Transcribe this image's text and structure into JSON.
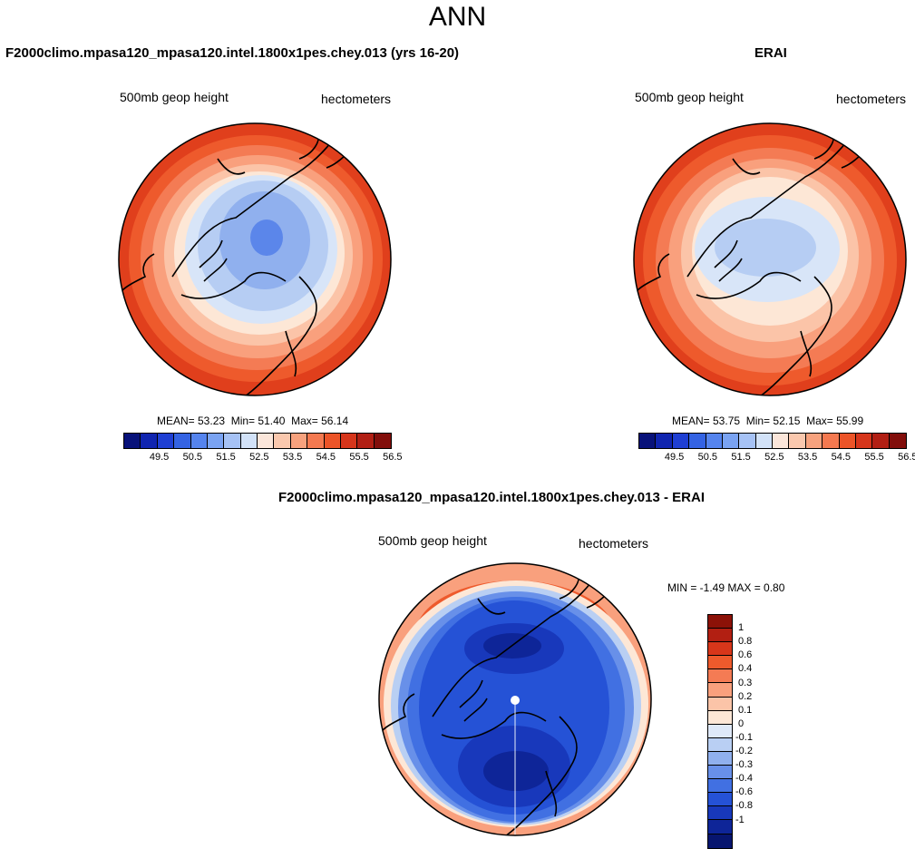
{
  "title": "ANN",
  "panels": {
    "left": {
      "title": "F2000climo.mpasa120_mpasa120.intel.1800x1pes.chey.013 (yrs 16-20)",
      "variable": "500mb geop height",
      "units": "hectometers",
      "mean": "MEAN=  53.23",
      "min": "Min=  51.40",
      "max": "Max=  56.14"
    },
    "right": {
      "title": "ERAI",
      "variable": "500mb geop height",
      "units": "hectometers",
      "mean": "MEAN=  53.75",
      "min": "Min=  52.15",
      "max": "Max=  55.99"
    },
    "diff": {
      "title": "F2000climo.mpasa120_mpasa120.intel.1800x1pes.chey.013 - ERAI",
      "variable": "500mb geop height",
      "units": "hectometers",
      "minmax": "MIN =  -1.49 MAX =   0.80"
    }
  },
  "colorbar_main": {
    "colors": [
      "#08127a",
      "#1025b0",
      "#1f3fd3",
      "#3463e3",
      "#5584ee",
      "#7aa3f2",
      "#a6c2f5",
      "#d2e2f8",
      "#fbe6da",
      "#fac8ae",
      "#f7a27e",
      "#f47950",
      "#ec5428",
      "#d6351b",
      "#b11f14",
      "#820e0b"
    ],
    "labels": [
      "49.5",
      "50.5",
      "51.5",
      "52.5",
      "53.5",
      "54.5",
      "55.5",
      "56.5"
    ]
  },
  "colorbar_diff": {
    "colors": [
      "#8c1208",
      "#b21f12",
      "#d8361a",
      "#ee5a2c",
      "#f47b54",
      "#f9a07d",
      "#fbc4a8",
      "#fde7d6",
      "#dfe9f8",
      "#b9cff3",
      "#90b0ee",
      "#6890e9",
      "#4170e2",
      "#2552d6",
      "#1838bb",
      "#0e2598",
      "#07156f"
    ],
    "labels": [
      "1",
      "0.8",
      "0.6",
      "0.4",
      "0.3",
      "0.2",
      "0.1",
      "0",
      "-0.1",
      "-0.2",
      "-0.3",
      "-0.4",
      "-0.6",
      "-0.8",
      "-1"
    ]
  }
}
